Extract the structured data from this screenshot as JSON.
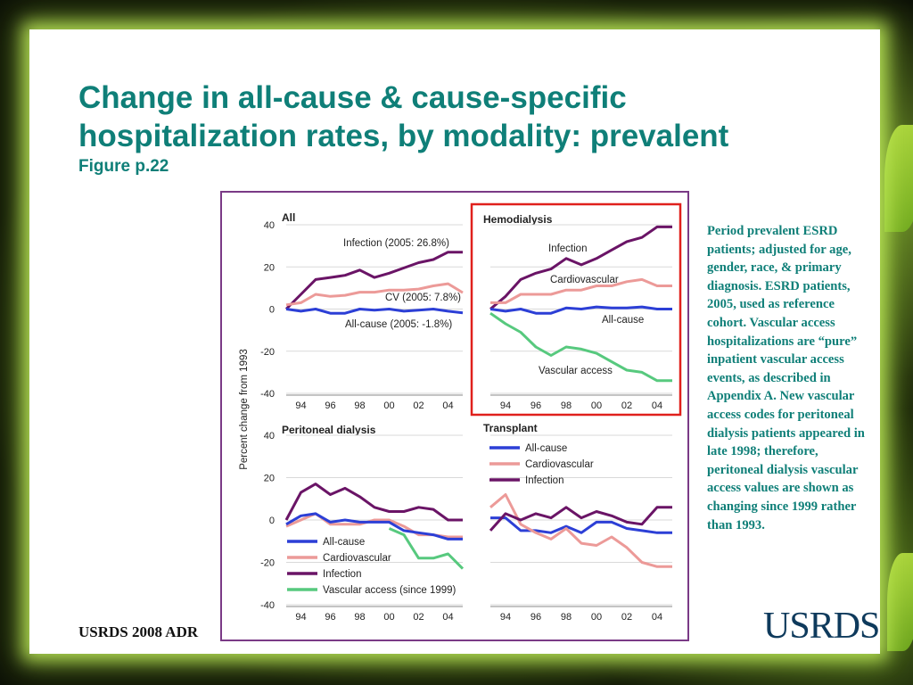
{
  "slide": {
    "title": "Change in all-cause & cause-specific hospitalization rates, by modality: prevalent",
    "subtitle": "Figure p.22",
    "note": "Period prevalent ESRD patients; adjusted for age, gender, race, & primary diagnosis. ESRD patients, 2005, used as reference cohort. Vascular access hospitalizations are “pure” inpatient vascular access events, as described in Appendix A. New vascular access codes for peritoneal dialysis patients appeared in late 1998; therefore, peritoneal dialysis vascular access values are shown as changing since 1999 rather than 1993.",
    "footer": "USRDS 2008 ADR",
    "logo": "USRDS"
  },
  "colors": {
    "title": "#0f7f78",
    "frame": "#7a3a86",
    "highlight": "#e0201c",
    "all_cause": "#2c3fd6",
    "cardiovascular": "#ec9a98",
    "infection": "#6a1466",
    "vascular_access": "#57c97e"
  },
  "chart_data": [
    {
      "type": "line",
      "panel": "All",
      "ylabel": "Percent change from 1993",
      "xticks": [
        "94",
        "96",
        "98",
        "00",
        "02",
        "04"
      ],
      "yticks": [
        40,
        20,
        0,
        -20,
        -40
      ],
      "ylim": [
        -40,
        40
      ],
      "x": [
        1993,
        1994,
        1995,
        1996,
        1997,
        1998,
        1999,
        2000,
        2001,
        2002,
        2003,
        2004,
        2005
      ],
      "series": [
        {
          "key": "infection",
          "values": [
            0,
            7,
            14,
            15,
            16,
            18.5,
            15,
            17,
            19.5,
            22,
            23.5,
            27,
            27
          ]
        },
        {
          "key": "cardiovascular",
          "values": [
            2,
            3,
            7,
            6,
            6.5,
            8,
            8,
            9,
            9,
            9.5,
            11,
            12,
            7.8
          ]
        },
        {
          "key": "all_cause",
          "values": [
            0,
            -1,
            0,
            -2,
            -2,
            0,
            -0.5,
            0,
            -1,
            -0.5,
            0,
            -1,
            -1.8
          ]
        }
      ],
      "annotations": [
        "Infection  (2005: 26.8%)",
        "CV (2005: 7.8%)",
        "All-cause  (2005: -1.8%)"
      ]
    },
    {
      "type": "line",
      "panel": "Hemodialysis",
      "highlighted": true,
      "xticks": [
        "94",
        "96",
        "98",
        "00",
        "02",
        "04"
      ],
      "ylim": [
        -40,
        40
      ],
      "x": [
        1993,
        1994,
        1995,
        1996,
        1997,
        1998,
        1999,
        2000,
        2001,
        2002,
        2003,
        2004,
        2005
      ],
      "series": [
        {
          "key": "infection",
          "values": [
            0,
            6,
            14,
            17,
            19,
            24,
            21,
            24,
            28,
            32,
            34,
            39,
            39
          ]
        },
        {
          "key": "cardiovascular",
          "values": [
            3,
            3,
            7,
            7,
            7,
            9,
            9,
            11,
            11,
            13,
            14,
            11,
            11
          ]
        },
        {
          "key": "all_cause",
          "values": [
            0,
            -1,
            0,
            -2,
            -2,
            0.5,
            0,
            1,
            0.5,
            0.5,
            1,
            0,
            0
          ]
        },
        {
          "key": "vascular_access",
          "values": [
            -2,
            -7,
            -11,
            -18,
            -22,
            -18,
            -19,
            -21,
            -25,
            -29,
            -30,
            -34,
            -34
          ]
        }
      ],
      "annotations": [
        "Infection",
        "Cardiovascular",
        "All-cause",
        "Vascular access"
      ]
    },
    {
      "type": "line",
      "panel": "Peritoneal dialysis",
      "xticks": [
        "94",
        "96",
        "98",
        "00",
        "02",
        "04"
      ],
      "yticks": [
        40,
        20,
        0,
        -20,
        -40
      ],
      "ylim": [
        -40,
        40
      ],
      "x": [
        1993,
        1994,
        1995,
        1996,
        1997,
        1998,
        1999,
        2000,
        2001,
        2002,
        2003,
        2004,
        2005
      ],
      "series": [
        {
          "key": "infection",
          "values": [
            0,
            13,
            17,
            12,
            15,
            11,
            6,
            4,
            4,
            6,
            5,
            0,
            0
          ]
        },
        {
          "key": "cardiovascular",
          "values": [
            -3,
            0,
            3,
            -2,
            -2,
            -2,
            0,
            0,
            -3,
            -7,
            -7,
            -8,
            -8
          ]
        },
        {
          "key": "all_cause",
          "values": [
            -2,
            2,
            3,
            -1,
            0,
            -1,
            -1,
            -1,
            -5,
            -6,
            -7,
            -9,
            -9
          ]
        },
        {
          "key": "vascular_access",
          "x": [
            2000,
            2001,
            2002,
            2003,
            2004,
            2005
          ],
          "values": [
            -4,
            -7,
            -18,
            -18,
            -16,
            -23
          ]
        }
      ],
      "legend": [
        "All-cause",
        "Cardiovascular",
        "Infection",
        "Vascular access (since 1999)"
      ]
    },
    {
      "type": "line",
      "panel": "Transplant",
      "xticks": [
        "94",
        "96",
        "98",
        "00",
        "02",
        "04"
      ],
      "ylim": [
        -40,
        40
      ],
      "x": [
        1993,
        1994,
        1995,
        1996,
        1997,
        1998,
        1999,
        2000,
        2001,
        2002,
        2003,
        2004,
        2005
      ],
      "series": [
        {
          "key": "all_cause",
          "values": [
            1,
            1,
            -5,
            -5,
            -6,
            -3,
            -6,
            -1,
            -1,
            -4,
            -5,
            -6,
            -6
          ]
        },
        {
          "key": "cardiovascular",
          "values": [
            6,
            12,
            -2,
            -6,
            -9,
            -4,
            -11,
            -12,
            -8,
            -13,
            -20,
            -22,
            -22
          ]
        },
        {
          "key": "infection",
          "values": [
            -5,
            3,
            0,
            3,
            1,
            6,
            1,
            4,
            2,
            -1,
            -2,
            6,
            6
          ]
        }
      ],
      "legend": [
        "All-cause",
        "Cardiovascular",
        "Infection"
      ]
    }
  ]
}
